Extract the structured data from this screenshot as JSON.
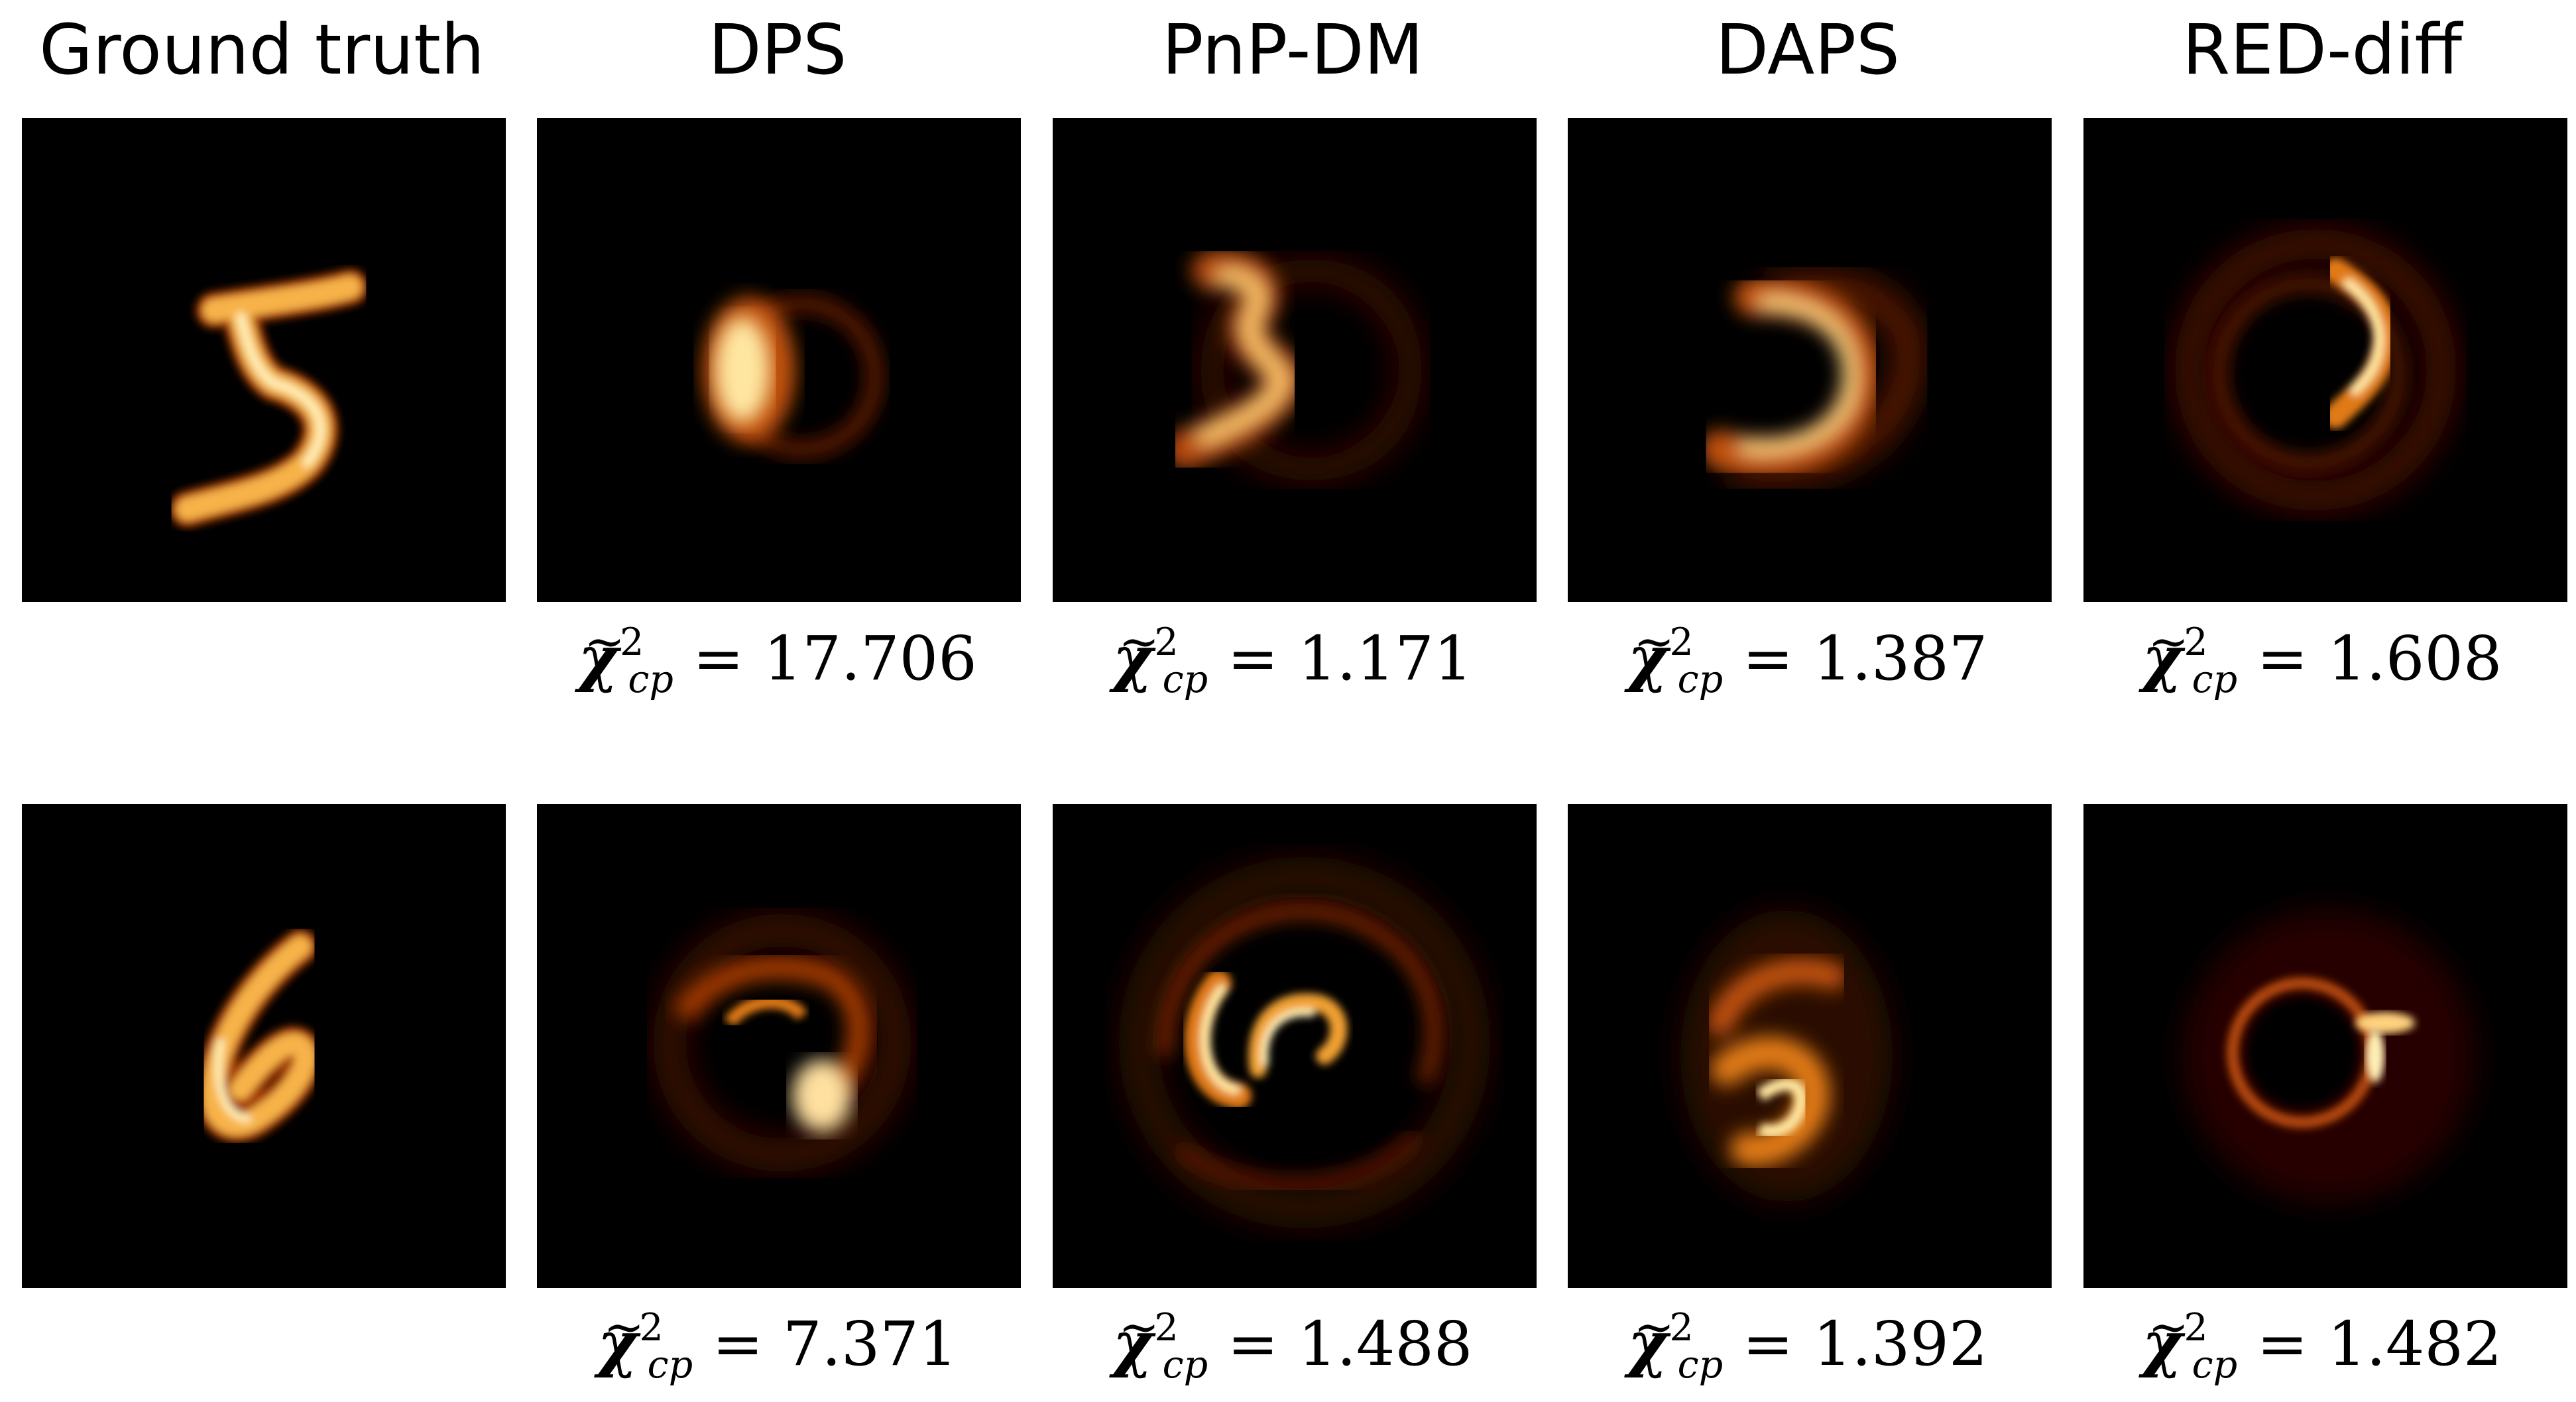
{
  "columns": [
    "Ground truth",
    "DPS",
    "PnP-DM",
    "DAPS",
    "RED-diff"
  ],
  "metric": {
    "symbol": "χ",
    "tilde": "~",
    "superscript": "2",
    "subscript": "cp",
    "equals": "="
  },
  "rows": [
    {
      "digit": "5",
      "metrics": [
        "17.706",
        "1.171",
        "1.387",
        "1.608"
      ]
    },
    {
      "digit": "6",
      "metrics": [
        "7.371",
        "1.488",
        "1.392",
        "1.482"
      ]
    }
  ],
  "colors": {
    "panel_background": "#000000",
    "flame_core": "#ffe9a8",
    "flame_mid": "#e07a16",
    "flame_edge": "#7a1e00"
  }
}
